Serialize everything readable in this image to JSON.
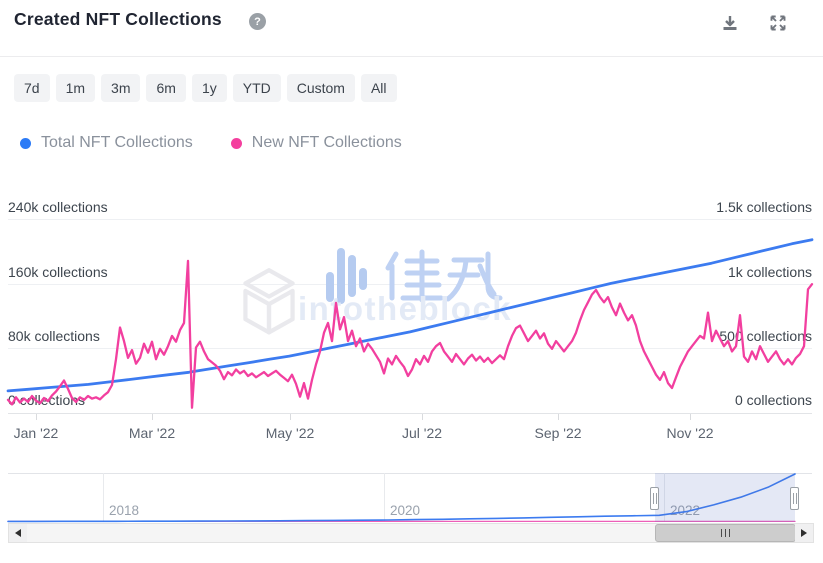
{
  "header": {
    "title": "Created NFT Collections",
    "help_glyph": "?",
    "icons": [
      "download-icon",
      "expand-icon"
    ]
  },
  "time_ranges": [
    "7d",
    "1m",
    "3m",
    "6m",
    "1y",
    "YTD",
    "Custom",
    "All"
  ],
  "legend": [
    {
      "label": "Total NFT Collections",
      "color": "#2c7bf6"
    },
    {
      "label": "New NFT Collections",
      "color": "#f43f9e"
    }
  ],
  "watermark": {
    "en_text": "intotheblock",
    "cn_text": "BlockBeats logo"
  },
  "chart_data": {
    "type": "line",
    "title": "Created NFT Collections",
    "xlabel": "",
    "ylabel": "collections",
    "grid": true,
    "legend_position": "top-left",
    "x_axis": {
      "tick_labels": [
        "Jan '22",
        "Mar '22",
        "May '22",
        "Jul '22",
        "Sep '22",
        "Nov '22"
      ],
      "range": [
        "Jan 2022",
        "Dec 2022"
      ]
    },
    "left_axis": {
      "series": "Total NFT Collections",
      "ticks": [
        "0 collections",
        "80k collections",
        "160k collections",
        "240k collections"
      ],
      "ylim": [
        0,
        240000
      ]
    },
    "right_axis": {
      "series": "New NFT Collections",
      "ticks": [
        "0 collections",
        "500 collections",
        "1k collections",
        "1.5k collections"
      ],
      "ylim": [
        0,
        1500
      ]
    },
    "series": [
      {
        "name": "Total NFT Collections",
        "axis": "left",
        "color": "#3c7bf0",
        "stroke_width": 2.8,
        "values": [
          28000,
          30000,
          32000,
          34000,
          36000,
          39000,
          42000,
          45000,
          48000,
          51000,
          55000,
          59000,
          63000,
          67000,
          71000,
          76000,
          81000,
          86000,
          91000,
          96000,
          101000,
          107000,
          113000,
          119000,
          125000,
          131000,
          137000,
          143000,
          149000,
          155000,
          161000,
          166000,
          171000,
          176000,
          181000,
          186000,
          192000,
          198000,
          204000,
          210000,
          215000
        ]
      },
      {
        "name": "New NFT Collections",
        "axis": "right",
        "color": "#f23f9f",
        "stroke_width": 2.3,
        "values": [
          105,
          70,
          125,
          85,
          115,
          90,
          135,
          100,
          80,
          120,
          95,
          140,
          170,
          210,
          255,
          190,
          120,
          90,
          125,
          105,
          135,
          115,
          125,
          110,
          140,
          165,
          220,
          420,
          665,
          560,
          430,
          490,
          385,
          430,
          540,
          470,
          555,
          420,
          500,
          455,
          520,
          600,
          555,
          645,
          700,
          1180,
          45,
          510,
          555,
          480,
          420,
          395,
          370,
          330,
          265,
          320,
          295,
          340,
          310,
          330,
          290,
          310,
          280,
          300,
          320,
          290,
          310,
          330,
          300,
          275,
          250,
          300,
          230,
          130,
          235,
          115,
          260,
          380,
          480,
          625,
          700,
          560,
          855,
          650,
          745,
          560,
          640,
          520,
          580,
          480,
          540,
          500,
          450,
          400,
          310,
          425,
          380,
          445,
          400,
          360,
          290,
          340,
          420,
          380,
          445,
          400,
          480,
          520,
          545,
          480,
          440,
          400,
          460,
          420,
          380,
          425,
          455,
          410,
          440,
          400,
          430,
          390,
          420,
          450,
          420,
          520,
          600,
          660,
          680,
          620,
          560,
          600,
          640,
          580,
          620,
          540,
          500,
          560,
          520,
          480,
          520,
          560,
          625,
          720,
          800,
          860,
          920,
          955,
          900,
          860,
          900,
          820,
          760,
          850,
          780,
          720,
          760,
          680,
          560,
          480,
          420,
          360,
          300,
          260,
          320,
          235,
          197,
          280,
          360,
          420,
          480,
          520,
          560,
          600,
          580,
          780,
          560,
          640,
          580,
          520,
          560,
          480,
          520,
          760,
          440,
          400,
          480,
          420,
          520,
          460,
          400,
          440,
          480,
          420,
          380,
          420,
          380,
          430,
          460,
          520,
          960,
          1000
        ]
      }
    ],
    "navigator": {
      "year_labels": [
        "2018",
        "2020",
        "2022"
      ],
      "x_range": [
        "mid 2017",
        "early 2023"
      ],
      "selected_window": "Jan 2022 - Dec 2022",
      "ymax": 215000,
      "series": [
        {
          "name": "Total NFT Collections (all time)",
          "color": "#3c7bf0",
          "values": [
            500,
            600,
            700,
            800,
            1000,
            1200,
            1500,
            1800,
            2200,
            2700,
            3300,
            4000,
            4800,
            5800,
            7000,
            8500,
            10000,
            12000,
            14000,
            16500,
            19000,
            21500,
            24000,
            26000,
            28000,
            45000,
            75000,
            110000,
            155000,
            215000
          ]
        },
        {
          "name": "New NFT Collections (all time)",
          "color": "#ec5fb8",
          "values": [
            400,
            400
          ]
        }
      ]
    }
  }
}
